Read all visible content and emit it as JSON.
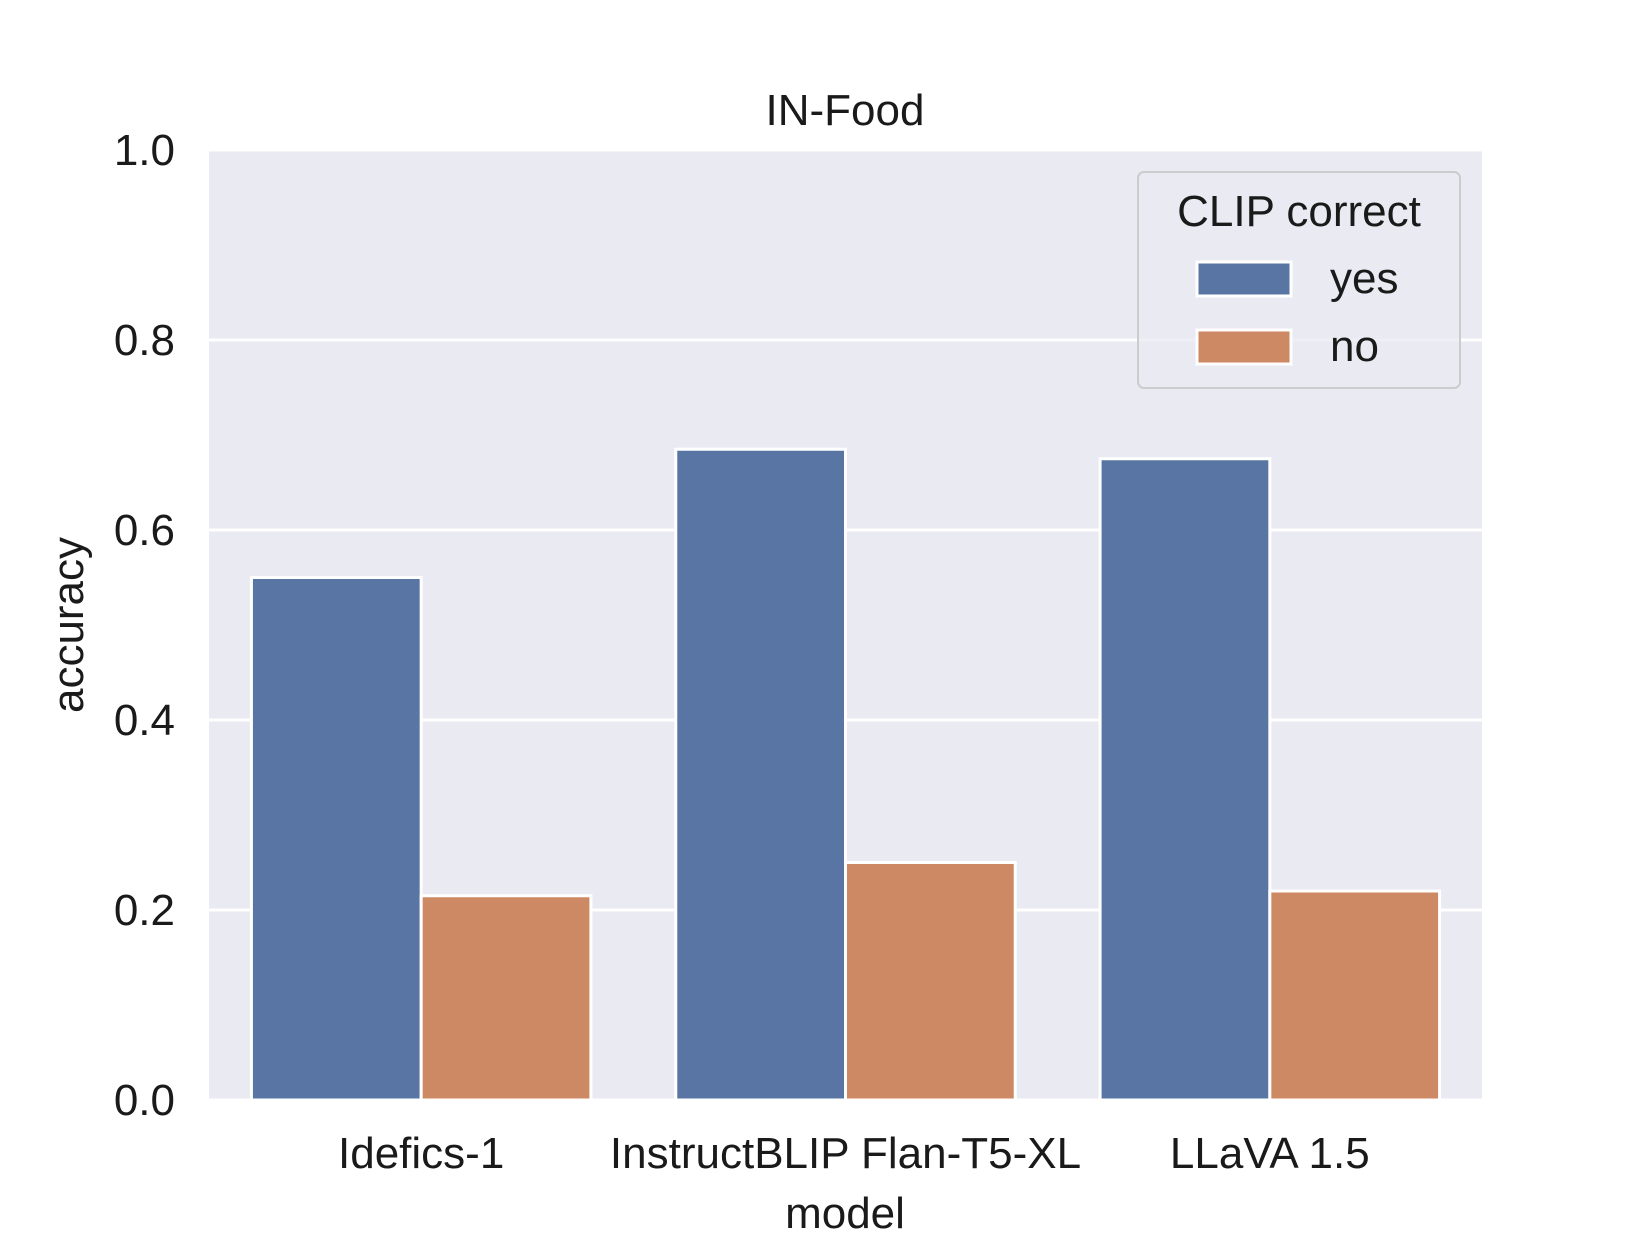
{
  "chart_data": {
    "type": "bar",
    "title": "IN-Food",
    "xlabel": "model",
    "ylabel": "accuracy",
    "categories": [
      "Idefics-1",
      "InstructBLIP Flan-T5-XL",
      "LLaVA 1.5"
    ],
    "series": [
      {
        "name": "yes",
        "values": [
          0.55,
          0.685,
          0.675
        ],
        "color": "#5975a4"
      },
      {
        "name": "no",
        "values": [
          0.215,
          0.25,
          0.22
        ],
        "color": "#cc8963"
      }
    ],
    "ylim": [
      0,
      1.0
    ],
    "yticks": [
      "0.0",
      "0.2",
      "0.4",
      "0.6",
      "0.8",
      "1.0"
    ],
    "grid": true,
    "legend": {
      "title": "CLIP correct",
      "placement": "top-right"
    },
    "colors": {
      "plot_background": "#eaeaf2",
      "grid": "#ffffff",
      "bar_edge": "#ffffff"
    }
  }
}
